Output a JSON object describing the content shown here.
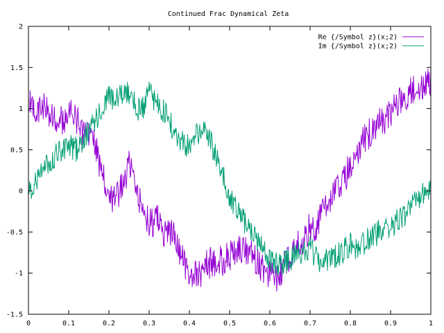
{
  "chart_data": {
    "type": "line",
    "title": "Continued Frac Dynamical Zeta",
    "xlabel": "",
    "ylabel": "",
    "xlim": [
      0,
      1
    ],
    "ylim": [
      -1.5,
      2
    ],
    "xticks": [
      "0",
      "0.1",
      "0.2",
      "0.3",
      "0.4",
      "0.5",
      "0.6",
      "0.7",
      "0.8",
      "0.9",
      "1"
    ],
    "yticks": [
      "-1.5",
      "-1",
      "-0.5",
      "0",
      "0.5",
      "1",
      "1.5",
      "2"
    ],
    "grid": false,
    "legend_position": "top-right",
    "series": [
      {
        "name": "Re {/Symbol z}(x;2)",
        "color": "#9400d3",
        "x": [
          0.0,
          0.02,
          0.04,
          0.06,
          0.08,
          0.1,
          0.12,
          0.14,
          0.16,
          0.17,
          0.18,
          0.2,
          0.22,
          0.24,
          0.25,
          0.26,
          0.28,
          0.3,
          0.32,
          0.34,
          0.36,
          0.38,
          0.4,
          0.42,
          0.44,
          0.46,
          0.48,
          0.5,
          0.52,
          0.54,
          0.56,
          0.58,
          0.6,
          0.62,
          0.64,
          0.66,
          0.68,
          0.7,
          0.72,
          0.74,
          0.76,
          0.78,
          0.8,
          0.82,
          0.84,
          0.86,
          0.88,
          0.9,
          0.92,
          0.94,
          0.96,
          0.98,
          1.0
        ],
        "y": [
          1.05,
          0.95,
          1.05,
          0.9,
          0.85,
          0.95,
          0.85,
          0.7,
          0.6,
          0.45,
          0.3,
          -0.1,
          -0.05,
          0.15,
          0.3,
          0.15,
          -0.15,
          -0.4,
          -0.35,
          -0.55,
          -0.5,
          -0.8,
          -1.0,
          -1.05,
          -0.9,
          -0.85,
          -0.85,
          -0.8,
          -0.7,
          -0.75,
          -0.8,
          -0.95,
          -1.0,
          -1.05,
          -0.85,
          -0.7,
          -0.6,
          -0.45,
          -0.4,
          -0.15,
          0.0,
          0.1,
          0.3,
          0.5,
          0.65,
          0.8,
          0.85,
          0.95,
          1.1,
          1.15,
          1.25,
          1.3,
          1.35
        ]
      },
      {
        "name": "Im {/Symbol z}(x;2)",
        "color": "#009e73",
        "x": [
          0.0,
          0.02,
          0.04,
          0.06,
          0.08,
          0.1,
          0.12,
          0.14,
          0.16,
          0.18,
          0.2,
          0.22,
          0.24,
          0.26,
          0.28,
          0.3,
          0.32,
          0.34,
          0.36,
          0.38,
          0.4,
          0.42,
          0.44,
          0.46,
          0.48,
          0.5,
          0.52,
          0.54,
          0.56,
          0.58,
          0.6,
          0.62,
          0.64,
          0.66,
          0.68,
          0.7,
          0.72,
          0.74,
          0.76,
          0.78,
          0.8,
          0.82,
          0.84,
          0.86,
          0.88,
          0.9,
          0.92,
          0.94,
          0.96,
          0.98,
          1.0
        ],
        "y": [
          -0.05,
          0.15,
          0.3,
          0.4,
          0.5,
          0.55,
          0.5,
          0.65,
          0.8,
          0.95,
          1.15,
          1.1,
          1.25,
          1.1,
          0.95,
          1.2,
          1.05,
          0.95,
          0.75,
          0.6,
          0.55,
          0.7,
          0.75,
          0.5,
          0.25,
          -0.05,
          -0.25,
          -0.4,
          -0.55,
          -0.7,
          -0.85,
          -0.9,
          -0.85,
          -0.8,
          -0.75,
          -0.7,
          -0.85,
          -0.85,
          -0.8,
          -0.75,
          -0.65,
          -0.7,
          -0.6,
          -0.55,
          -0.45,
          -0.45,
          -0.35,
          -0.3,
          -0.15,
          -0.05,
          0.05
        ]
      }
    ]
  }
}
